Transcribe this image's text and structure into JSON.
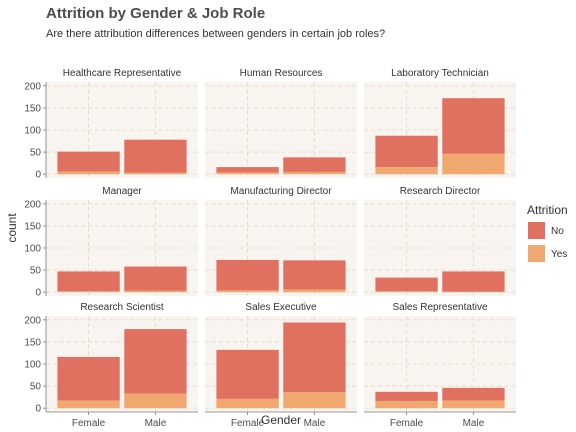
{
  "chart_data": {
    "type": "bar",
    "stacked": true,
    "title": "Attrition by Gender & Job Role",
    "subtitle": "Are there attribution differences between genders in certain job roles?",
    "xlabel": "Gender",
    "ylabel": "count",
    "ylim": [
      0,
      200
    ],
    "yticks": [
      0,
      50,
      100,
      150,
      200
    ],
    "categories": [
      "Female",
      "Male"
    ],
    "legend": {
      "title": "Attrition",
      "position": "right",
      "entries": [
        {
          "name": "No",
          "color": "#e07060"
        },
        {
          "name": "Yes",
          "color": "#f0a870"
        }
      ]
    },
    "panel_background": "#f8f5f0",
    "grid": true,
    "facets": [
      {
        "name": "Healthcare Representative",
        "series": [
          {
            "name": "No",
            "values": [
              45,
              75
            ]
          },
          {
            "name": "Yes",
            "values": [
              6,
              3
            ]
          }
        ]
      },
      {
        "name": "Human Resources",
        "series": [
          {
            "name": "No",
            "values": [
              12,
              33
            ]
          },
          {
            "name": "Yes",
            "values": [
              4,
              5
            ]
          }
        ]
      },
      {
        "name": "Laboratory Technician",
        "series": [
          {
            "name": "No",
            "values": [
              71,
              126
            ]
          },
          {
            "name": "Yes",
            "values": [
              16,
              46
            ]
          }
        ]
      },
      {
        "name": "Manager",
        "series": [
          {
            "name": "No",
            "values": [
              45,
              55
            ]
          },
          {
            "name": "Yes",
            "values": [
              2,
              3
            ]
          }
        ]
      },
      {
        "name": "Manufacturing Director",
        "series": [
          {
            "name": "No",
            "values": [
              69,
              66
            ]
          },
          {
            "name": "Yes",
            "values": [
              4,
              6
            ]
          }
        ]
      },
      {
        "name": "Research Director",
        "series": [
          {
            "name": "No",
            "values": [
              31,
              46
            ]
          },
          {
            "name": "Yes",
            "values": [
              2,
              1
            ]
          }
        ]
      },
      {
        "name": "Research Scientist",
        "series": [
          {
            "name": "No",
            "values": [
              99,
              146
            ]
          },
          {
            "name": "Yes",
            "values": [
              17,
              33
            ]
          }
        ]
      },
      {
        "name": "Sales Executive",
        "series": [
          {
            "name": "No",
            "values": [
              111,
              158
            ]
          },
          {
            "name": "Yes",
            "values": [
              21,
              36
            ]
          }
        ]
      },
      {
        "name": "Sales Representative",
        "series": [
          {
            "name": "No",
            "values": [
              21,
              29
            ]
          },
          {
            "name": "Yes",
            "values": [
              16,
              17
            ]
          }
        ]
      }
    ]
  }
}
